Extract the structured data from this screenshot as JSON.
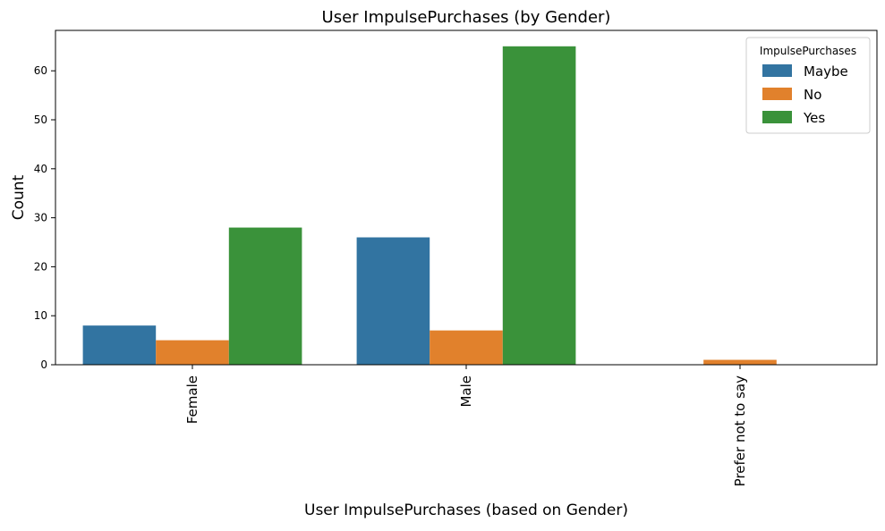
{
  "chart_data": {
    "type": "bar",
    "title": "User ImpulsePurchases (by Gender)",
    "xlabel": "User ImpulsePurchases (based on Gender)",
    "ylabel": "Count",
    "categories": [
      "Female",
      "Male",
      "Prefer not to say"
    ],
    "series": [
      {
        "name": "Maybe",
        "color": "#3274a1",
        "values": [
          8,
          26,
          0
        ]
      },
      {
        "name": "No",
        "color": "#e1812c",
        "values": [
          5,
          7,
          1
        ]
      },
      {
        "name": "Yes",
        "color": "#3a923a",
        "values": [
          28,
          65,
          0
        ]
      }
    ],
    "ylim": [
      0,
      68.25
    ],
    "yticks": [
      0,
      10,
      20,
      30,
      40,
      50,
      60
    ],
    "legend": {
      "title": "ImpulsePurchases",
      "position": "top-right"
    },
    "grid": false
  }
}
